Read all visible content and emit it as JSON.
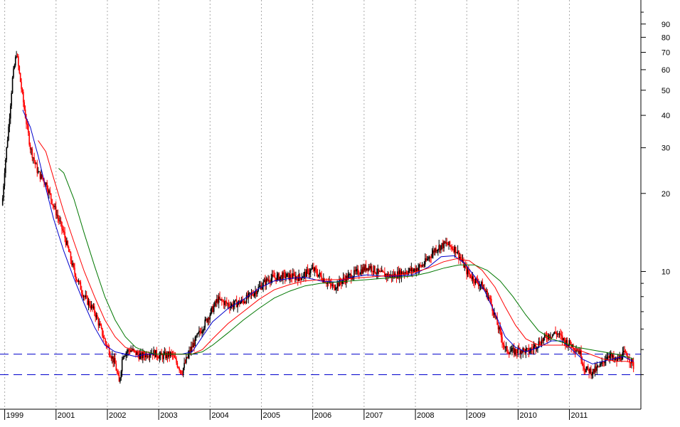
{
  "chart_data": {
    "type": "candlestick",
    "y_scale": "log",
    "ylim": [
      3.0,
      110
    ],
    "y_ticks": [
      10,
      20,
      30,
      40,
      50,
      60,
      70,
      80,
      90
    ],
    "y_tick_labels": [
      "10",
      "20",
      "30",
      "40",
      "50",
      "60",
      "70",
      "80",
      "90"
    ],
    "x_range": [
      1999.0,
      2011.4
    ],
    "x_ticks": [
      {
        "label": "1999",
        "x": 1999.05
      },
      {
        "label": "2001",
        "x": 2000.05
      },
      {
        "label": "2002",
        "x": 2001.05
      },
      {
        "label": "2003",
        "x": 2002.05
      },
      {
        "label": "2004",
        "x": 2003.05
      },
      {
        "label": "2005",
        "x": 2004.05
      },
      {
        "label": "2006",
        "x": 2005.05
      },
      {
        "label": "2007",
        "x": 2006.05
      },
      {
        "label": "2008",
        "x": 2007.05
      },
      {
        "label": "2009",
        "x": 2008.05
      },
      {
        "label": "2010",
        "x": 2009.05
      },
      {
        "label": "2011",
        "x": 2010.05
      }
    ],
    "grid": "vertical dotted",
    "horizontal_levels": [
      {
        "value": 4.8,
        "color": "#0000cc",
        "style": "dashed"
      },
      {
        "value": 4.0,
        "color": "#0000cc",
        "style": "dashed"
      }
    ],
    "price_path": [
      [
        1999.0,
        18
      ],
      [
        1999.05,
        25
      ],
      [
        1999.12,
        35
      ],
      [
        1999.2,
        55
      ],
      [
        1999.28,
        70
      ],
      [
        1999.35,
        55
      ],
      [
        1999.45,
        40
      ],
      [
        1999.55,
        30
      ],
      [
        1999.7,
        24
      ],
      [
        1999.85,
        22
      ],
      [
        2000.0,
        18
      ],
      [
        2000.2,
        14
      ],
      [
        2000.4,
        10
      ],
      [
        2000.6,
        8
      ],
      [
        2000.8,
        7
      ],
      [
        2001.0,
        5.4
      ],
      [
        2001.2,
        4.4
      ],
      [
        2001.28,
        3.7
      ],
      [
        2001.35,
        4.8
      ],
      [
        2001.5,
        5.0
      ],
      [
        2001.7,
        4.7
      ],
      [
        2001.9,
        4.9
      ],
      [
        2002.1,
        4.7
      ],
      [
        2002.3,
        4.8
      ],
      [
        2002.5,
        4.1
      ],
      [
        2002.65,
        4.9
      ],
      [
        2002.8,
        5.6
      ],
      [
        2003.0,
        6.6
      ],
      [
        2003.2,
        7.8
      ],
      [
        2003.45,
        7.4
      ],
      [
        2003.7,
        7.7
      ],
      [
        2003.9,
        8.3
      ],
      [
        2004.2,
        9.4
      ],
      [
        2004.5,
        9.6
      ],
      [
        2004.8,
        9.5
      ],
      [
        2005.05,
        10.2
      ],
      [
        2005.25,
        9.4
      ],
      [
        2005.45,
        8.7
      ],
      [
        2005.65,
        9.3
      ],
      [
        2005.9,
        9.9
      ],
      [
        2006.15,
        10.5
      ],
      [
        2006.35,
        9.8
      ],
      [
        2006.6,
        9.6
      ],
      [
        2006.85,
        10.0
      ],
      [
        2007.0,
        10.1
      ],
      [
        2007.2,
        10.6
      ],
      [
        2007.45,
        12.3
      ],
      [
        2007.65,
        12.8
      ],
      [
        2007.85,
        12.1
      ],
      [
        2008.05,
        10.0
      ],
      [
        2008.2,
        9.3
      ],
      [
        2008.35,
        8.8
      ],
      [
        2008.5,
        7.8
      ],
      [
        2008.65,
        6.2
      ],
      [
        2008.8,
        5.0
      ],
      [
        2008.95,
        4.9
      ],
      [
        2009.1,
        5.0
      ],
      [
        2009.25,
        4.9
      ],
      [
        2009.45,
        5.3
      ],
      [
        2009.65,
        5.7
      ],
      [
        2009.8,
        5.8
      ],
      [
        2009.95,
        5.4
      ],
      [
        2010.1,
        5.2
      ],
      [
        2010.25,
        4.9
      ],
      [
        2010.35,
        4.2
      ],
      [
        2010.5,
        4.1
      ],
      [
        2010.65,
        4.3
      ],
      [
        2010.8,
        4.8
      ],
      [
        2010.95,
        4.5
      ],
      [
        2011.1,
        4.8
      ],
      [
        2011.2,
        4.7
      ],
      [
        2011.3,
        4.3
      ]
    ],
    "series": [
      {
        "color": "#0000cc",
        "points": [
          [
            1999.4,
            42
          ],
          [
            1999.55,
            36
          ],
          [
            1999.7,
            28
          ],
          [
            1999.85,
            21
          ],
          [
            2000.0,
            16
          ],
          [
            2000.2,
            12
          ],
          [
            2000.4,
            9.4
          ],
          [
            2000.6,
            7.5
          ],
          [
            2000.8,
            6.1
          ],
          [
            2001.0,
            5.2
          ],
          [
            2001.2,
            4.9
          ],
          [
            2001.4,
            4.8
          ],
          [
            2001.6,
            4.7
          ],
          [
            2001.8,
            4.8
          ],
          [
            2002.0,
            4.8
          ],
          [
            2002.2,
            4.8
          ],
          [
            2002.5,
            4.8
          ],
          [
            2002.7,
            4.9
          ],
          [
            2002.9,
            5.6
          ],
          [
            2003.1,
            6.4
          ],
          [
            2003.4,
            7.2
          ],
          [
            2003.7,
            7.8
          ],
          [
            2004.0,
            8.6
          ],
          [
            2004.3,
            9.2
          ],
          [
            2004.6,
            9.4
          ],
          [
            2004.9,
            9.5
          ],
          [
            2005.2,
            9.2
          ],
          [
            2005.5,
            9.1
          ],
          [
            2005.8,
            9.5
          ],
          [
            2006.1,
            9.7
          ],
          [
            2006.4,
            9.6
          ],
          [
            2006.7,
            9.6
          ],
          [
            2007.0,
            9.7
          ],
          [
            2007.3,
            10.4
          ],
          [
            2007.55,
            11.4
          ],
          [
            2007.8,
            11.5
          ],
          [
            2008.0,
            10.8
          ],
          [
            2008.2,
            9.6
          ],
          [
            2008.4,
            8.4
          ],
          [
            2008.6,
            6.9
          ],
          [
            2008.8,
            5.6
          ],
          [
            2009.0,
            5.1
          ],
          [
            2009.2,
            4.9
          ],
          [
            2009.45,
            5.1
          ],
          [
            2009.7,
            5.4
          ],
          [
            2009.9,
            5.4
          ],
          [
            2010.1,
            5.0
          ],
          [
            2010.3,
            4.6
          ],
          [
            2010.5,
            4.4
          ],
          [
            2010.7,
            4.5
          ],
          [
            2010.9,
            4.6
          ],
          [
            2011.1,
            4.7
          ],
          [
            2011.3,
            4.5
          ]
        ]
      },
      {
        "color": "#ff0000",
        "points": [
          [
            1999.7,
            32
          ],
          [
            1999.85,
            29
          ],
          [
            2000.0,
            23
          ],
          [
            2000.2,
            17
          ],
          [
            2000.4,
            13
          ],
          [
            2000.6,
            10
          ],
          [
            2000.8,
            8.0
          ],
          [
            2001.0,
            6.5
          ],
          [
            2001.2,
            5.6
          ],
          [
            2001.4,
            5.1
          ],
          [
            2001.6,
            4.9
          ],
          [
            2001.8,
            4.9
          ],
          [
            2002.0,
            4.8
          ],
          [
            2002.2,
            4.8
          ],
          [
            2002.5,
            4.8
          ],
          [
            2002.7,
            4.8
          ],
          [
            2002.9,
            5.0
          ],
          [
            2003.1,
            5.5
          ],
          [
            2003.4,
            6.3
          ],
          [
            2003.7,
            7.0
          ],
          [
            2004.0,
            7.8
          ],
          [
            2004.3,
            8.5
          ],
          [
            2004.6,
            8.9
          ],
          [
            2004.9,
            9.2
          ],
          [
            2005.2,
            9.3
          ],
          [
            2005.5,
            9.3
          ],
          [
            2005.8,
            9.4
          ],
          [
            2006.1,
            9.5
          ],
          [
            2006.4,
            9.6
          ],
          [
            2006.7,
            9.7
          ],
          [
            2007.0,
            9.9
          ],
          [
            2007.3,
            10.3
          ],
          [
            2007.6,
            10.9
          ],
          [
            2007.85,
            11.2
          ],
          [
            2008.1,
            11.0
          ],
          [
            2008.35,
            10.1
          ],
          [
            2008.6,
            8.7
          ],
          [
            2008.8,
            7.3
          ],
          [
            2009.0,
            6.2
          ],
          [
            2009.2,
            5.5
          ],
          [
            2009.45,
            5.2
          ],
          [
            2009.7,
            5.2
          ],
          [
            2009.95,
            5.2
          ],
          [
            2010.2,
            5.0
          ],
          [
            2010.45,
            4.8
          ],
          [
            2010.7,
            4.6
          ],
          [
            2010.95,
            4.5
          ],
          [
            2011.15,
            4.5
          ],
          [
            2011.3,
            4.45
          ]
        ]
      },
      {
        "color": "#007700",
        "points": [
          [
            2000.1,
            25
          ],
          [
            2000.2,
            24
          ],
          [
            2000.4,
            19
          ],
          [
            2000.6,
            14
          ],
          [
            2000.8,
            10.5
          ],
          [
            2001.0,
            8.0
          ],
          [
            2001.2,
            6.5
          ],
          [
            2001.4,
            5.6
          ],
          [
            2001.6,
            5.1
          ],
          [
            2001.8,
            4.9
          ],
          [
            2002.0,
            4.8
          ],
          [
            2002.2,
            4.8
          ],
          [
            2002.5,
            4.8
          ],
          [
            2002.7,
            4.8
          ],
          [
            2002.9,
            4.9
          ],
          [
            2003.1,
            5.2
          ],
          [
            2003.4,
            5.8
          ],
          [
            2003.7,
            6.5
          ],
          [
            2004.0,
            7.2
          ],
          [
            2004.3,
            7.9
          ],
          [
            2004.6,
            8.4
          ],
          [
            2004.9,
            8.8
          ],
          [
            2005.2,
            9.0
          ],
          [
            2005.5,
            9.1
          ],
          [
            2005.8,
            9.2
          ],
          [
            2006.1,
            9.3
          ],
          [
            2006.4,
            9.4
          ],
          [
            2006.7,
            9.5
          ],
          [
            2007.0,
            9.6
          ],
          [
            2007.3,
            9.9
          ],
          [
            2007.6,
            10.3
          ],
          [
            2007.9,
            10.6
          ],
          [
            2008.2,
            10.6
          ],
          [
            2008.45,
            10.1
          ],
          [
            2008.7,
            9.2
          ],
          [
            2008.95,
            8.0
          ],
          [
            2009.2,
            6.8
          ],
          [
            2009.45,
            5.9
          ],
          [
            2009.7,
            5.5
          ],
          [
            2009.95,
            5.3
          ],
          [
            2010.2,
            5.1
          ],
          [
            2010.45,
            5.0
          ],
          [
            2010.7,
            4.9
          ],
          [
            2010.95,
            4.8
          ],
          [
            2011.15,
            4.7
          ],
          [
            2011.3,
            4.6
          ]
        ]
      }
    ]
  }
}
